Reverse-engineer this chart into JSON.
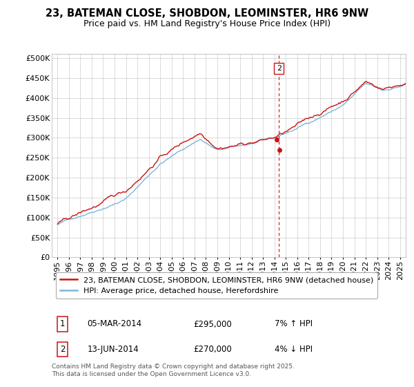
{
  "title": "23, BATEMAN CLOSE, SHOBDON, LEOMINSTER, HR6 9NW",
  "subtitle": "Price paid vs. HM Land Registry's House Price Index (HPI)",
  "xlim_start": 1994.5,
  "xlim_end": 2025.5,
  "ylim": [
    0,
    510000
  ],
  "yticks": [
    0,
    50000,
    100000,
    150000,
    200000,
    250000,
    300000,
    350000,
    400000,
    450000,
    500000
  ],
  "ytick_labels": [
    "£0",
    "£50K",
    "£100K",
    "£150K",
    "£200K",
    "£250K",
    "£300K",
    "£350K",
    "£400K",
    "£450K",
    "£500K"
  ],
  "xticks": [
    1995,
    1996,
    1997,
    1998,
    1999,
    2000,
    2001,
    2002,
    2003,
    2004,
    2005,
    2006,
    2007,
    2008,
    2009,
    2010,
    2011,
    2012,
    2013,
    2014,
    2015,
    2016,
    2017,
    2018,
    2019,
    2020,
    2021,
    2022,
    2023,
    2024,
    2025
  ],
  "hpi_color": "#7ab8d8",
  "price_color": "#cc1111",
  "vline_color": "#cc1111",
  "transaction1_date": 2014.17,
  "transaction1_price": 295000,
  "transaction2_date": 2014.45,
  "transaction2_price": 270000,
  "legend_label_price": "23, BATEMAN CLOSE, SHOBDON, LEOMINSTER, HR6 9NW (detached house)",
  "legend_label_hpi": "HPI: Average price, detached house, Herefordshire",
  "table_row1": [
    "1",
    "05-MAR-2014",
    "£295,000",
    "7% ↑ HPI"
  ],
  "table_row2": [
    "2",
    "13-JUN-2014",
    "£270,000",
    "4% ↓ HPI"
  ],
  "footer": "Contains HM Land Registry data © Crown copyright and database right 2025.\nThis data is licensed under the Open Government Licence v3.0.",
  "background_color": "#ffffff",
  "grid_color": "#cccccc",
  "title_fontsize": 10.5,
  "subtitle_fontsize": 9,
  "tick_fontsize": 8,
  "legend_fontsize": 8
}
